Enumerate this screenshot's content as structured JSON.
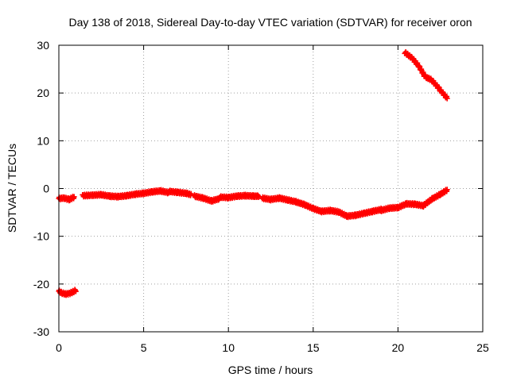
{
  "chart_data": {
    "type": "scatter",
    "title": "Day 138 of 2018, Sidereal Day-to-day VTEC variation (SDTVAR) for receiver oron",
    "xlabel": "GPS time / hours",
    "ylabel": "SDTVAR / TECUs",
    "xlim": [
      0,
      25
    ],
    "ylim": [
      -30,
      30
    ],
    "xticks": [
      0,
      5,
      10,
      15,
      20,
      25
    ],
    "yticks": [
      -30,
      -20,
      -10,
      0,
      10,
      20,
      30
    ],
    "grid": true,
    "legend": "none",
    "series": [
      {
        "name": "SDTVAR",
        "color": "#ff0000",
        "marker": "plus",
        "segments": [
          {
            "x": [
              0.0,
              0.2,
              0.4,
              0.6,
              0.8,
              1.0
            ],
            "y": [
              -21.5,
              -21.9,
              -22.1,
              -22.0,
              -21.7,
              -21.3
            ]
          },
          {
            "x": [
              0.0,
              0.3,
              0.6,
              0.9
            ],
            "y": [
              -2.1,
              -2.0,
              -2.3,
              -1.8
            ]
          },
          {
            "x": [
              1.4,
              2.0,
              2.5,
              3.0,
              3.5,
              4.0,
              4.5,
              5.0,
              5.5,
              6.0,
              6.5
            ],
            "y": [
              -1.5,
              -1.4,
              -1.3,
              -1.6,
              -1.7,
              -1.5,
              -1.2,
              -1.0,
              -0.7,
              -0.5,
              -0.9
            ]
          },
          {
            "x": [
              6.5,
              7.0,
              7.5,
              7.8
            ],
            "y": [
              -0.6,
              -0.8,
              -1.0,
              -1.3
            ]
          },
          {
            "x": [
              8.0,
              8.5,
              9.0,
              9.5
            ],
            "y": [
              -1.6,
              -2.0,
              -2.6,
              -2.1
            ]
          },
          {
            "x": [
              9.5,
              10.0,
              10.5,
              11.0,
              11.5,
              11.8
            ],
            "y": [
              -1.8,
              -1.9,
              -1.6,
              -1.5,
              -1.6,
              -1.6
            ]
          },
          {
            "x": [
              12.0,
              12.5,
              13.0,
              13.5,
              14.0,
              14.5,
              15.0,
              15.5,
              16.0,
              16.5,
              17.0,
              17.5,
              18.0,
              18.5,
              19.0
            ],
            "y": [
              -2.0,
              -2.3,
              -2.0,
              -2.4,
              -2.8,
              -3.4,
              -4.2,
              -4.8,
              -4.6,
              -4.9,
              -5.8,
              -5.6,
              -5.2,
              -4.8,
              -4.4
            ]
          },
          {
            "x": [
              19.0,
              19.5,
              20.0,
              20.5,
              21.0,
              21.5,
              22.0,
              22.5,
              22.9
            ],
            "y": [
              -4.6,
              -4.1,
              -4.0,
              -3.2,
              -3.3,
              -3.6,
              -2.2,
              -1.2,
              -0.3
            ]
          },
          {
            "x": [
              20.4,
              20.8,
              21.2,
              21.6,
              22.0,
              22.4,
              22.9
            ],
            "y": [
              28.5,
              27.4,
              25.8,
              23.4,
              22.7,
              21.0,
              18.9
            ]
          }
        ]
      }
    ]
  }
}
